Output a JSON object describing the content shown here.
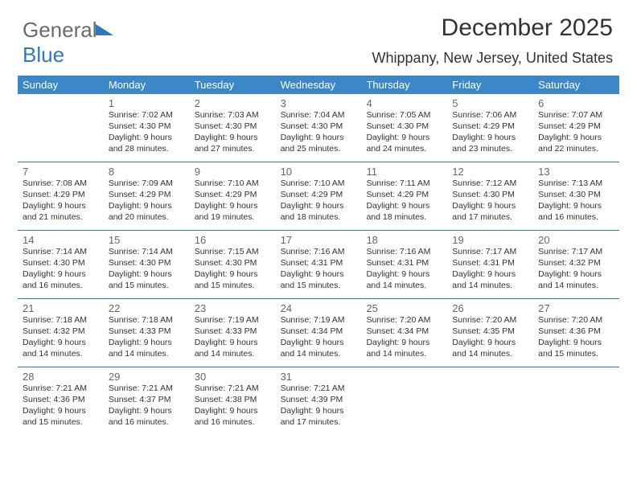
{
  "logo_text_a": "General",
  "logo_text_b": "Blue",
  "title": "December 2025",
  "location": "Whippany, New Jersey, United States",
  "colors": {
    "header_bg": "#3b87c8",
    "header_text": "#ffffff",
    "week_border": "#2f79b9",
    "daynum": "#666666",
    "info_text": "#323232",
    "title_text": "#333333",
    "logo_gray": "#6b6b6b",
    "logo_blue": "#2f79b9",
    "page_bg": "#ffffff"
  },
  "day_headers": [
    "Sunday",
    "Monday",
    "Tuesday",
    "Wednesday",
    "Thursday",
    "Friday",
    "Saturday"
  ],
  "weeks": [
    [
      {
        "n": "",
        "sr": "",
        "ss": "",
        "dl": ""
      },
      {
        "n": "1",
        "sr": "Sunrise: 7:02 AM",
        "ss": "Sunset: 4:30 PM",
        "dl": "Daylight: 9 hours and 28 minutes."
      },
      {
        "n": "2",
        "sr": "Sunrise: 7:03 AM",
        "ss": "Sunset: 4:30 PM",
        "dl": "Daylight: 9 hours and 27 minutes."
      },
      {
        "n": "3",
        "sr": "Sunrise: 7:04 AM",
        "ss": "Sunset: 4:30 PM",
        "dl": "Daylight: 9 hours and 25 minutes."
      },
      {
        "n": "4",
        "sr": "Sunrise: 7:05 AM",
        "ss": "Sunset: 4:30 PM",
        "dl": "Daylight: 9 hours and 24 minutes."
      },
      {
        "n": "5",
        "sr": "Sunrise: 7:06 AM",
        "ss": "Sunset: 4:29 PM",
        "dl": "Daylight: 9 hours and 23 minutes."
      },
      {
        "n": "6",
        "sr": "Sunrise: 7:07 AM",
        "ss": "Sunset: 4:29 PM",
        "dl": "Daylight: 9 hours and 22 minutes."
      }
    ],
    [
      {
        "n": "7",
        "sr": "Sunrise: 7:08 AM",
        "ss": "Sunset: 4:29 PM",
        "dl": "Daylight: 9 hours and 21 minutes."
      },
      {
        "n": "8",
        "sr": "Sunrise: 7:09 AM",
        "ss": "Sunset: 4:29 PM",
        "dl": "Daylight: 9 hours and 20 minutes."
      },
      {
        "n": "9",
        "sr": "Sunrise: 7:10 AM",
        "ss": "Sunset: 4:29 PM",
        "dl": "Daylight: 9 hours and 19 minutes."
      },
      {
        "n": "10",
        "sr": "Sunrise: 7:10 AM",
        "ss": "Sunset: 4:29 PM",
        "dl": "Daylight: 9 hours and 18 minutes."
      },
      {
        "n": "11",
        "sr": "Sunrise: 7:11 AM",
        "ss": "Sunset: 4:29 PM",
        "dl": "Daylight: 9 hours and 18 minutes."
      },
      {
        "n": "12",
        "sr": "Sunrise: 7:12 AM",
        "ss": "Sunset: 4:30 PM",
        "dl": "Daylight: 9 hours and 17 minutes."
      },
      {
        "n": "13",
        "sr": "Sunrise: 7:13 AM",
        "ss": "Sunset: 4:30 PM",
        "dl": "Daylight: 9 hours and 16 minutes."
      }
    ],
    [
      {
        "n": "14",
        "sr": "Sunrise: 7:14 AM",
        "ss": "Sunset: 4:30 PM",
        "dl": "Daylight: 9 hours and 16 minutes."
      },
      {
        "n": "15",
        "sr": "Sunrise: 7:14 AM",
        "ss": "Sunset: 4:30 PM",
        "dl": "Daylight: 9 hours and 15 minutes."
      },
      {
        "n": "16",
        "sr": "Sunrise: 7:15 AM",
        "ss": "Sunset: 4:30 PM",
        "dl": "Daylight: 9 hours and 15 minutes."
      },
      {
        "n": "17",
        "sr": "Sunrise: 7:16 AM",
        "ss": "Sunset: 4:31 PM",
        "dl": "Daylight: 9 hours and 15 minutes."
      },
      {
        "n": "18",
        "sr": "Sunrise: 7:16 AM",
        "ss": "Sunset: 4:31 PM",
        "dl": "Daylight: 9 hours and 14 minutes."
      },
      {
        "n": "19",
        "sr": "Sunrise: 7:17 AM",
        "ss": "Sunset: 4:31 PM",
        "dl": "Daylight: 9 hours and 14 minutes."
      },
      {
        "n": "20",
        "sr": "Sunrise: 7:17 AM",
        "ss": "Sunset: 4:32 PM",
        "dl": "Daylight: 9 hours and 14 minutes."
      }
    ],
    [
      {
        "n": "21",
        "sr": "Sunrise: 7:18 AM",
        "ss": "Sunset: 4:32 PM",
        "dl": "Daylight: 9 hours and 14 minutes."
      },
      {
        "n": "22",
        "sr": "Sunrise: 7:18 AM",
        "ss": "Sunset: 4:33 PM",
        "dl": "Daylight: 9 hours and 14 minutes."
      },
      {
        "n": "23",
        "sr": "Sunrise: 7:19 AM",
        "ss": "Sunset: 4:33 PM",
        "dl": "Daylight: 9 hours and 14 minutes."
      },
      {
        "n": "24",
        "sr": "Sunrise: 7:19 AM",
        "ss": "Sunset: 4:34 PM",
        "dl": "Daylight: 9 hours and 14 minutes."
      },
      {
        "n": "25",
        "sr": "Sunrise: 7:20 AM",
        "ss": "Sunset: 4:34 PM",
        "dl": "Daylight: 9 hours and 14 minutes."
      },
      {
        "n": "26",
        "sr": "Sunrise: 7:20 AM",
        "ss": "Sunset: 4:35 PM",
        "dl": "Daylight: 9 hours and 14 minutes."
      },
      {
        "n": "27",
        "sr": "Sunrise: 7:20 AM",
        "ss": "Sunset: 4:36 PM",
        "dl": "Daylight: 9 hours and 15 minutes."
      }
    ],
    [
      {
        "n": "28",
        "sr": "Sunrise: 7:21 AM",
        "ss": "Sunset: 4:36 PM",
        "dl": "Daylight: 9 hours and 15 minutes."
      },
      {
        "n": "29",
        "sr": "Sunrise: 7:21 AM",
        "ss": "Sunset: 4:37 PM",
        "dl": "Daylight: 9 hours and 16 minutes."
      },
      {
        "n": "30",
        "sr": "Sunrise: 7:21 AM",
        "ss": "Sunset: 4:38 PM",
        "dl": "Daylight: 9 hours and 16 minutes."
      },
      {
        "n": "31",
        "sr": "Sunrise: 7:21 AM",
        "ss": "Sunset: 4:39 PM",
        "dl": "Daylight: 9 hours and 17 minutes."
      },
      {
        "n": "",
        "sr": "",
        "ss": "",
        "dl": ""
      },
      {
        "n": "",
        "sr": "",
        "ss": "",
        "dl": ""
      },
      {
        "n": "",
        "sr": "",
        "ss": "",
        "dl": ""
      }
    ]
  ]
}
